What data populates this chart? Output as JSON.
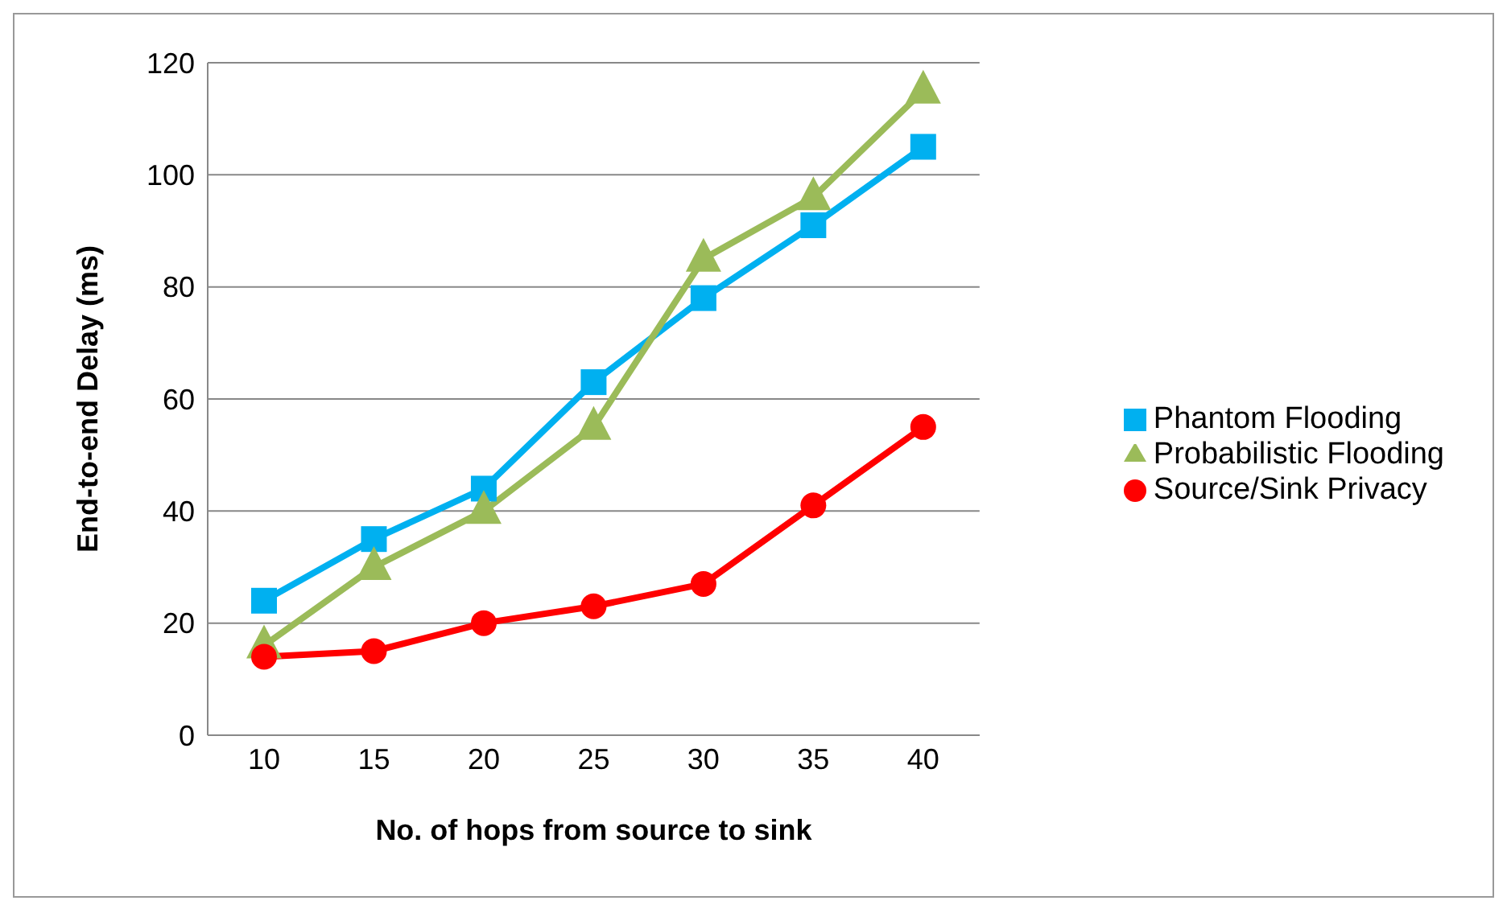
{
  "chart_data": {
    "type": "line",
    "xlabel": "No. of hops from source to sink",
    "ylabel": "End-to-end Delay (ms)",
    "categories": [
      "10",
      "15",
      "20",
      "25",
      "30",
      "35",
      "40"
    ],
    "series": [
      {
        "name": "Phantom Flooding",
        "color": "#00b0f0",
        "marker": "square",
        "values": [
          24,
          35,
          44,
          63,
          78,
          91,
          105
        ]
      },
      {
        "name": "Probabilistic Flooding",
        "color": "#9bbb59",
        "marker": "triangle",
        "values": [
          16,
          30,
          40,
          55,
          85,
          96,
          115
        ]
      },
      {
        "name": "Source/Sink Privacy",
        "color": "#ff0000",
        "marker": "circle",
        "values": [
          14,
          15,
          20,
          23,
          27,
          41,
          55
        ]
      }
    ],
    "ylim": [
      0,
      120
    ],
    "yticks": [
      0,
      20,
      40,
      60,
      80,
      100,
      120
    ],
    "grid": "y",
    "legend": "right"
  }
}
